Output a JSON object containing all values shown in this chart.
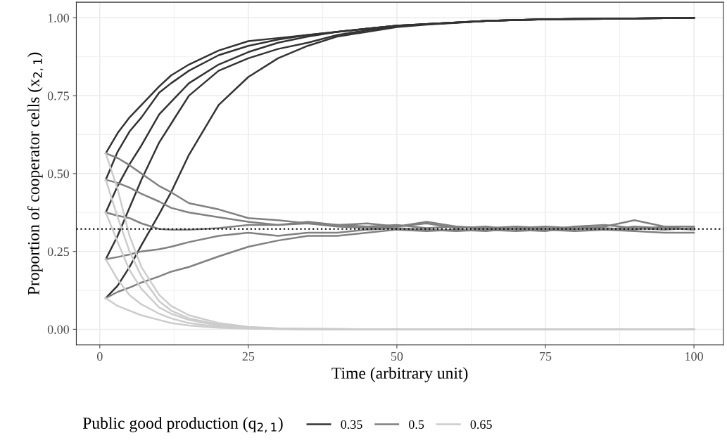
{
  "chart_data": {
    "type": "line",
    "xlabel": "Time (arbitrary unit)",
    "ylabel": "Proportion of cooperator cells (x$_{2,1}$)",
    "legend_title": "Public good production (q$_{2,1}$)",
    "x": [
      1,
      3,
      5,
      7,
      10,
      12,
      15,
      20,
      25,
      30,
      35,
      40,
      45,
      50,
      55,
      60,
      65,
      70,
      75,
      80,
      85,
      90,
      95,
      100
    ],
    "series": [
      {
        "name": "0.35",
        "color": "#333333",
        "values": [
          0.565,
          0.63,
          0.68,
          0.72,
          0.78,
          0.815,
          0.85,
          0.895,
          0.925,
          0.935,
          0.945,
          0.955,
          0.965,
          0.975,
          0.98,
          0.985,
          0.99,
          0.993,
          0.995,
          0.996,
          0.997,
          0.998,
          0.999,
          1.0
        ]
      },
      {
        "color": "#333333",
        "values": [
          0.48,
          0.57,
          0.635,
          0.68,
          0.76,
          0.79,
          0.83,
          0.88,
          0.91,
          0.93,
          0.945,
          0.955,
          0.965,
          0.975,
          0.98,
          0.985,
          0.99,
          0.993,
          0.995,
          0.996,
          0.997,
          0.998,
          0.999,
          1.0
        ]
      },
      {
        "color": "#333333",
        "values": [
          0.375,
          0.46,
          0.53,
          0.59,
          0.69,
          0.73,
          0.79,
          0.85,
          0.89,
          0.92,
          0.94,
          0.955,
          0.965,
          0.975,
          0.98,
          0.985,
          0.99,
          0.993,
          0.995,
          0.996,
          0.997,
          0.998,
          0.999,
          1.0
        ]
      },
      {
        "color": "#333333",
        "values": [
          0.225,
          0.3,
          0.39,
          0.48,
          0.6,
          0.66,
          0.75,
          0.83,
          0.87,
          0.9,
          0.92,
          0.945,
          0.96,
          0.972,
          0.98,
          0.985,
          0.99,
          0.993,
          0.995,
          0.996,
          0.997,
          0.998,
          0.999,
          1.0
        ]
      },
      {
        "color": "#333333",
        "values": [
          0.1,
          0.14,
          0.2,
          0.27,
          0.37,
          0.44,
          0.56,
          0.72,
          0.81,
          0.87,
          0.91,
          0.94,
          0.955,
          0.97,
          0.978,
          0.984,
          0.99,
          0.993,
          0.995,
          0.996,
          0.997,
          0.998,
          0.999,
          1.0
        ]
      },
      {
        "name": "0.5",
        "color": "#808080",
        "values": [
          0.565,
          0.55,
          0.527,
          0.5,
          0.46,
          0.44,
          0.405,
          0.385,
          0.357,
          0.35,
          0.34,
          0.335,
          0.33,
          0.335,
          0.325,
          0.33,
          0.32,
          0.325,
          0.33,
          0.325,
          0.32,
          0.33,
          0.325,
          0.32
        ]
      },
      {
        "color": "#808080",
        "values": [
          0.48,
          0.47,
          0.455,
          0.435,
          0.41,
          0.39,
          0.375,
          0.36,
          0.345,
          0.335,
          0.34,
          0.33,
          0.325,
          0.33,
          0.34,
          0.325,
          0.33,
          0.32,
          0.315,
          0.33,
          0.335,
          0.325,
          0.32,
          0.325
        ]
      },
      {
        "color": "#808080",
        "values": [
          0.375,
          0.365,
          0.357,
          0.34,
          0.322,
          0.32,
          0.32,
          0.325,
          0.335,
          0.335,
          0.345,
          0.335,
          0.34,
          0.33,
          0.345,
          0.33,
          0.325,
          0.33,
          0.325,
          0.32,
          0.33,
          0.35,
          0.33,
          0.33
        ]
      },
      {
        "color": "#808080",
        "values": [
          0.225,
          0.232,
          0.24,
          0.25,
          0.257,
          0.265,
          0.28,
          0.3,
          0.31,
          0.3,
          0.31,
          0.31,
          0.32,
          0.325,
          0.32,
          0.315,
          0.32,
          0.315,
          0.32,
          0.33,
          0.325,
          0.32,
          0.33,
          0.32
        ]
      },
      {
        "color": "#808080",
        "values": [
          0.1,
          0.12,
          0.134,
          0.15,
          0.17,
          0.185,
          0.2,
          0.234,
          0.265,
          0.285,
          0.3,
          0.3,
          0.31,
          0.32,
          0.315,
          0.32,
          0.315,
          0.325,
          0.32,
          0.315,
          0.32,
          0.315,
          0.31,
          0.31
        ]
      },
      {
        "name": "0.65",
        "color": "#cccccc",
        "values": [
          0.565,
          0.45,
          0.3,
          0.2,
          0.11,
          0.075,
          0.045,
          0.02,
          0.008,
          0.003,
          0.002,
          0.001,
          0,
          0,
          0,
          0,
          0,
          0,
          0,
          0,
          0,
          0,
          0,
          0
        ]
      },
      {
        "color": "#cccccc",
        "values": [
          0.48,
          0.36,
          0.25,
          0.17,
          0.09,
          0.06,
          0.035,
          0.015,
          0.006,
          0.002,
          0.001,
          0.001,
          0,
          0,
          0,
          0,
          0,
          0,
          0,
          0,
          0,
          0,
          0,
          0
        ]
      },
      {
        "color": "#cccccc",
        "values": [
          0.375,
          0.28,
          0.19,
          0.13,
          0.07,
          0.05,
          0.03,
          0.012,
          0.005,
          0.002,
          0.001,
          0,
          0,
          0,
          0,
          0,
          0,
          0,
          0,
          0,
          0,
          0,
          0,
          0
        ]
      },
      {
        "color": "#cccccc",
        "values": [
          0.225,
          0.16,
          0.11,
          0.08,
          0.05,
          0.035,
          0.02,
          0.008,
          0.003,
          0.001,
          0,
          0,
          0,
          0,
          0,
          0,
          0,
          0,
          0,
          0,
          0,
          0,
          0,
          0
        ]
      },
      {
        "color": "#cccccc",
        "values": [
          0.1,
          0.075,
          0.06,
          0.045,
          0.03,
          0.02,
          0.012,
          0.005,
          0.002,
          0.001,
          0,
          0,
          0,
          0,
          0,
          0,
          0,
          0,
          0,
          0,
          0,
          0,
          0,
          0
        ]
      }
    ],
    "xlim": [
      -3.95,
      104.95
    ],
    "ylim": [
      -0.05,
      1.05
    ],
    "xticks": [
      0,
      25,
      50,
      75,
      100
    ],
    "yticks": [
      {
        "value": 0,
        "label": "0.00"
      },
      {
        "value": 0.25,
        "label": "0.25"
      },
      {
        "value": 0.5,
        "label": "0.50"
      },
      {
        "value": 0.75,
        "label": "0.75"
      },
      {
        "value": 1,
        "label": "1.00"
      }
    ],
    "ref_lines": [
      {
        "axis": "y",
        "value": 0.322,
        "color": "#000000",
        "line_style": "dotted"
      }
    ],
    "grid": true,
    "legend": "bottom",
    "marker": "none",
    "line_style": "solid"
  }
}
